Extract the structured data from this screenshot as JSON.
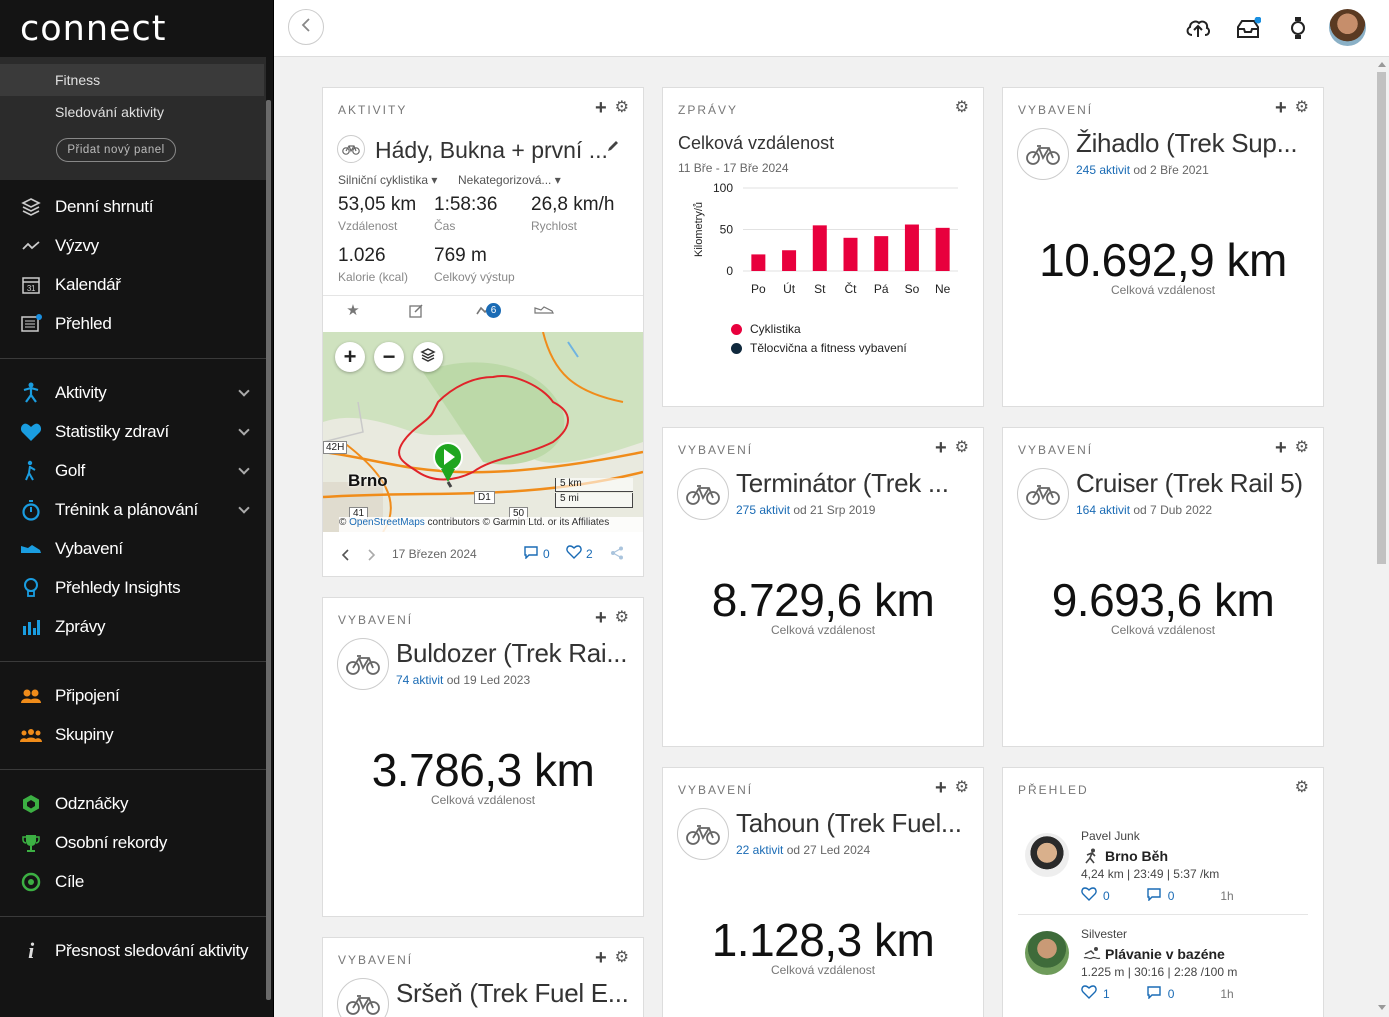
{
  "sidebar": {
    "logo": "connect",
    "dashboard_items": [
      "Fitness",
      "Sledování aktivity"
    ],
    "add_panel": "Přidat nový panel",
    "group1": [
      "Denní shrnutí",
      "Výzvy",
      "Kalendář",
      "Přehled"
    ],
    "group2": [
      "Aktivity",
      "Statistiky zdraví",
      "Golf",
      "Trénink a plánování",
      "Vybavení",
      "Přehledy Insights",
      "Zprávy"
    ],
    "group3": [
      "Připojení",
      "Skupiny"
    ],
    "group4": [
      "Odznáčky",
      "Osobní rekordy",
      "Cíle"
    ],
    "group5": [
      "Přesnost sledování aktivity"
    ],
    "calendar_day": "31"
  },
  "activity_card": {
    "section": "AKTIVITY",
    "name": "Hády, Bukna + první ...",
    "type": "Silniční cyklistika",
    "category": "Nekategorizová...",
    "stats": [
      {
        "value": "53,05 km",
        "label": "Vzdálenost"
      },
      {
        "value": "1:58:36",
        "label": "Čas"
      },
      {
        "value": "26,8 km/h",
        "label": "Rychlost"
      },
      {
        "value": "1.026",
        "label": "Kalorie (kcal)"
      },
      {
        "value": "769 m",
        "label": "Celkový výstup"
      }
    ],
    "badge_count": "6",
    "map": {
      "city": "Brno",
      "road_42h": "42H",
      "road_41": "41",
      "road_d1": "D1",
      "road_50": "50",
      "scale_km": "5 km",
      "scale_mi": "5 mi",
      "attribution_prefix": "©",
      "attribution_link": "OpenStreetMaps",
      "attribution_rest": "contributors © Garmin Ltd. or its Affiliates"
    },
    "date": "17 Březen 2024",
    "comments": "0",
    "likes": "2"
  },
  "report_card": {
    "section": "ZPRÁVY",
    "title": "Celková vzdálenost",
    "range": "11 Bře - 17 Bře 2024"
  },
  "chart_data": {
    "type": "bar",
    "title": "Celková vzdálenost",
    "subtitle": "11 Bře - 17 Bře 2024",
    "ylabel": "Kilometry/ů",
    "xlabel": "",
    "ylim": [
      0,
      100
    ],
    "yticks": [
      "0",
      "50",
      "100"
    ],
    "categories": [
      "Po",
      "Út",
      "St",
      "Čt",
      "Pá",
      "So",
      "Ne"
    ],
    "series": [
      {
        "name": "Cyklistika",
        "color": "#e8003d",
        "values": [
          20,
          25,
          55,
          40,
          42,
          56,
          52
        ]
      },
      {
        "name": "Tělocvična a fitness vybavení",
        "color": "#10293d",
        "values": [
          0,
          0,
          0,
          0,
          0,
          0,
          0
        ]
      }
    ],
    "legend": "bottom-left"
  },
  "gear_cards": [
    {
      "section": "VYBAVENÍ",
      "name": "Žihadlo (Trek Sup...",
      "count": "245 aktivit",
      "since": "od 2 Bře 2021",
      "distance": "10.692,9 km",
      "label": "Celková vzdálenost"
    },
    {
      "section": "VYBAVENÍ",
      "name": "Terminátor (Trek ...",
      "count": "275 aktivit",
      "since": "od 21 Srp 2019",
      "distance": "8.729,6 km",
      "label": "Celková vzdálenost"
    },
    {
      "section": "VYBAVENÍ",
      "name": "Cruiser (Trek Rail 5)",
      "count": "164 aktivit",
      "since": "od 7 Dub 2022",
      "distance": "9.693,6 km",
      "label": "Celková vzdálenost"
    },
    {
      "section": "VYBAVENÍ",
      "name": "Buldozer (Trek Rai...",
      "count": "74 aktivit",
      "since": "od 19 Led 2023",
      "distance": "3.786,3 km",
      "label": "Celková vzdálenost"
    },
    {
      "section": "VYBAVENÍ",
      "name": "Tahoun (Trek Fuel...",
      "count": "22 aktivit",
      "since": "od 27 Led 2024",
      "distance": "1.128,3 km",
      "label": "Celková vzdálenost"
    },
    {
      "section": "VYBAVENÍ",
      "name": "Sršeň (Trek Fuel E..."
    }
  ],
  "feed_card": {
    "section": "PŘEHLED",
    "items": [
      {
        "user": "Pavel Junk",
        "activity": "Brno Běh",
        "stats": "4,24 km | 23:49 | 5:37 /km",
        "likes": "0",
        "comments": "0",
        "time": "1h"
      },
      {
        "user": "Silvester",
        "activity": "Plávanie v bazéne",
        "stats": "1.225 m | 30:16 | 2:28 /100 m",
        "likes": "1",
        "comments": "0",
        "time": "1h"
      }
    ]
  },
  "colors": {
    "accent_red": "#e8003d",
    "link_blue": "#1a6bb5",
    "sidebar_bg": "#141414",
    "route": "#e0242a",
    "start_marker": "#1fa51f"
  }
}
